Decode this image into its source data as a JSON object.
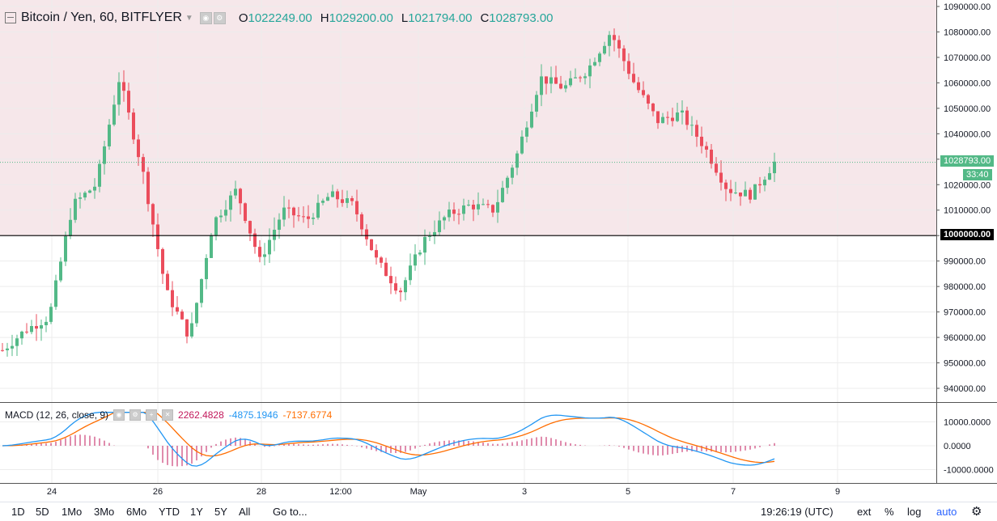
{
  "symbol": {
    "title": "Bitcoin / Yen, 60, BITFLYER",
    "ohlc": [
      {
        "label": "O",
        "value": "1022249.00"
      },
      {
        "label": "H",
        "value": "1029200.00"
      },
      {
        "label": "L",
        "value": "1021794.00"
      },
      {
        "label": "C",
        "value": "1028793.00"
      }
    ]
  },
  "price_axis": {
    "ticks": [
      "1090000.00",
      "1080000.00",
      "1070000.00",
      "1060000.00",
      "1050000.00",
      "1040000.00",
      "1030000.00",
      "1020000.00",
      "1010000.00",
      "1000000.00",
      "990000.00",
      "980000.00",
      "970000.00",
      "960000.00",
      "950000.00",
      "940000.00"
    ],
    "last_price": "1028793.00",
    "countdown": "33:40",
    "hline": "1000000.00"
  },
  "macd": {
    "title": "MACD (12, 26, close, 9)",
    "hist_value": "2262.4828",
    "macd_value": "-4875.1946",
    "signal_value": "-7137.6774",
    "axis_ticks": [
      "10000.0000",
      "0.0000",
      "-10000.0000"
    ]
  },
  "time_axis": [
    "24",
    "26",
    "28",
    "12:00",
    "May",
    "3",
    "5",
    "7",
    "9"
  ],
  "toolbar": {
    "ranges": [
      "1D",
      "5D",
      "1Mo",
      "3Mo",
      "6Mo",
      "YTD",
      "1Y",
      "5Y",
      "All"
    ],
    "goto": "Go to...",
    "clock": "19:26:19 (UTC)",
    "ext": "ext",
    "percent": "%",
    "log": "log",
    "auto": "auto"
  },
  "colors": {
    "up": "#53b987",
    "down": "#eb4d5c",
    "background_band": "#f6e7ea",
    "macd_line": "#2196f3",
    "signal_line": "#ff6d00",
    "hist": "#c2185b",
    "last_price_tag": "#53b987",
    "hline_tag": "#000000",
    "auto_blue": "#2962ff"
  },
  "chart_data": {
    "type": "candlestick",
    "x_ticks": [
      "24",
      "26",
      "28",
      "12:00",
      "May",
      "3",
      "5",
      "7",
      "9"
    ],
    "ylim": [
      935000,
      1090000
    ],
    "last_close": 1028793,
    "horizontal_line": 1000000,
    "series": [
      {
        "name": "price",
        "values": [
          955000,
          963000,
          968000,
          1012000,
          1020000,
          1062000,
          1025000,
          978000,
          960000,
          1005000,
          1018000,
          990000,
          1010000,
          1006000,
          1016000,
          1012000,
          990000,
          978000,
          998000,
          1008000,
          1012000,
          1010000,
          1032000,
          1062000,
          1058000,
          1065000,
          1080000,
          1060000,
          1045000,
          1048000,
          1035000,
          1018000,
          1016000,
          1028793
        ]
      }
    ]
  }
}
